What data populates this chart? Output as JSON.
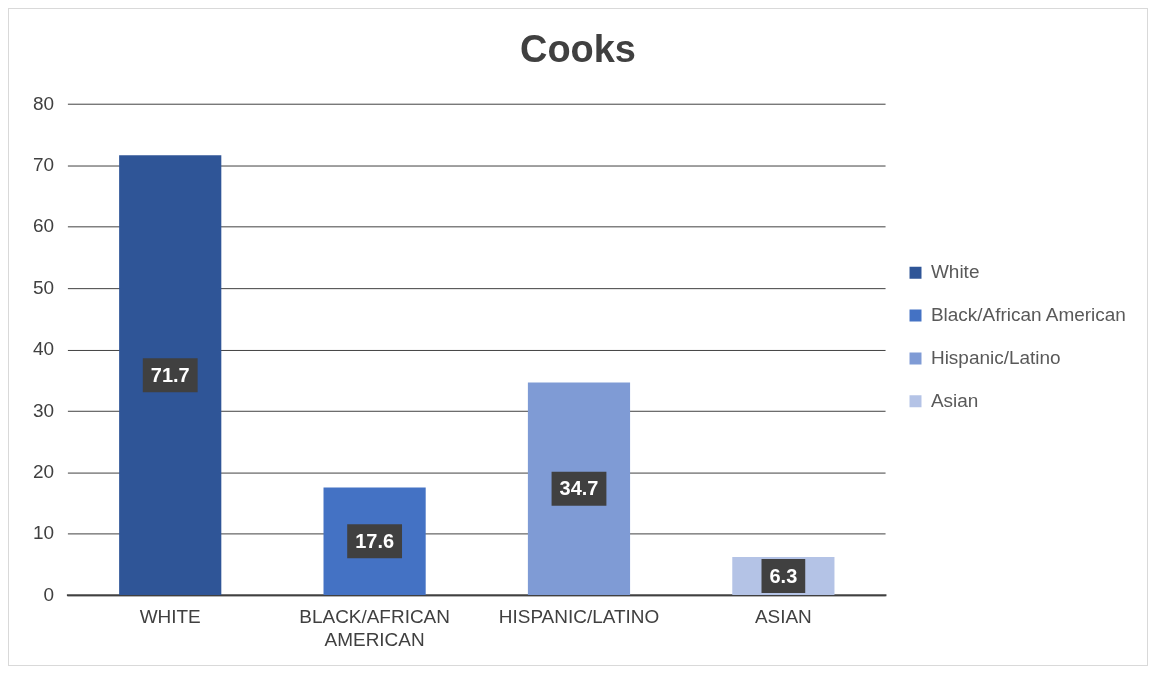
{
  "chart_data": {
    "type": "bar",
    "title": "Cooks",
    "categories": [
      "WHITE",
      "BLACK/AFRICAN AMERICAN",
      "HISPANIC/LATINO",
      "ASIAN"
    ],
    "series": [
      {
        "name": "White",
        "color": "#2f5597",
        "values": [
          71.7,
          null,
          null,
          null
        ]
      },
      {
        "name": "Black/African American",
        "color": "#4472c4",
        "values": [
          null,
          17.6,
          null,
          null
        ]
      },
      {
        "name": "Hispanic/Latino",
        "color": "#7f9bd5",
        "values": [
          null,
          null,
          34.7,
          null
        ]
      },
      {
        "name": "Asian",
        "color": "#b4c3e6",
        "values": [
          null,
          null,
          null,
          6.3
        ]
      }
    ],
    "ylim": [
      0,
      80
    ],
    "yticks": [
      0,
      10,
      20,
      30,
      40,
      50,
      60,
      70,
      80
    ],
    "grid": "y",
    "legend": "right",
    "data_labels": true
  }
}
